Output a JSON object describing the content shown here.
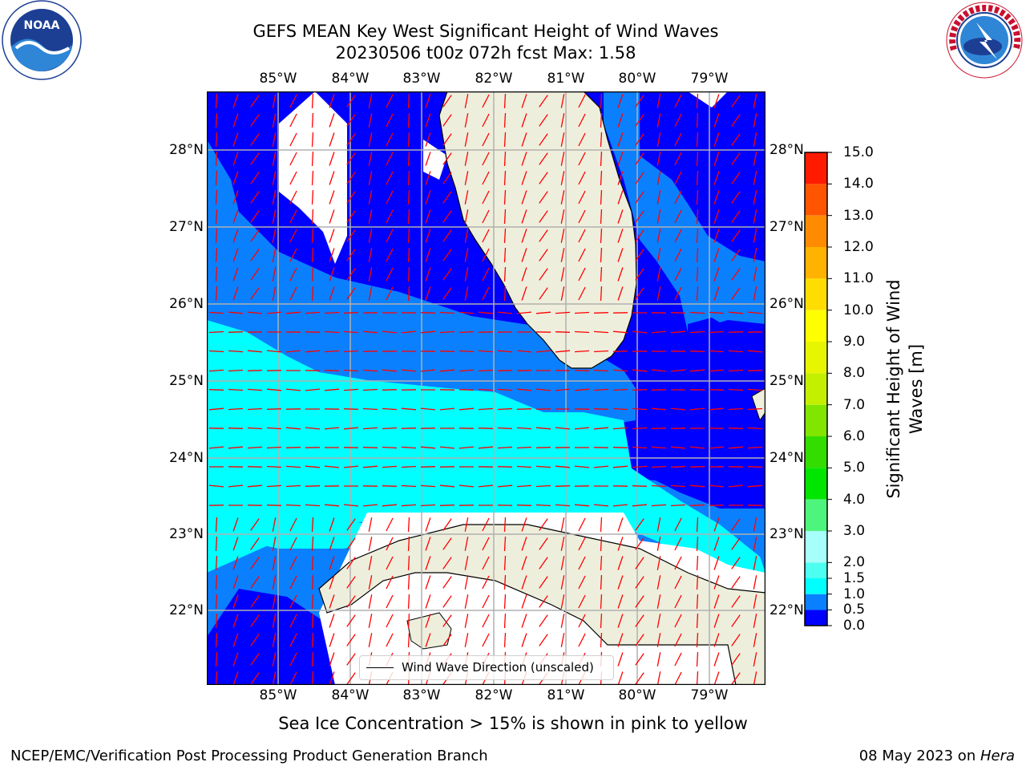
{
  "title": {
    "line1": "GEFS MEAN Key West Significant Height of Wind Waves",
    "line2": "20230506 t00z 072h fcst   Max: 1.58"
  },
  "map": {
    "lon_labels": [
      "85°W",
      "84°W",
      "83°W",
      "82°W",
      "81°W",
      "80°W",
      "79°W"
    ],
    "lat_labels": [
      "28°N",
      "27°N",
      "26°N",
      "25°N",
      "24°N",
      "23°N",
      "22°N"
    ],
    "colors": {
      "land": "#eeeedc",
      "sea_low": "#0000ff",
      "sea_mid": "#0b80ff",
      "sea_high": "#00ffff",
      "no_data": "#ffffff",
      "arrow": "#ff0000",
      "grid": "#b0b0b0"
    },
    "legend_label": "Wind Wave Direction (unscaled)"
  },
  "colorbar": {
    "label": "Significant Height of Wind Waves [m]",
    "ticks": [
      "0.0",
      "0.5",
      "1.0",
      "1.5",
      "2.0",
      "3.0",
      "4.0",
      "5.0",
      "6.0",
      "7.0",
      "8.0",
      "9.0",
      "10.0",
      "11.0",
      "12.0",
      "13.0",
      "14.0",
      "15.0"
    ],
    "colors": [
      "#0000ff",
      "#0b80ff",
      "#00ffff",
      "#4cfff0",
      "#a6fffb",
      "#4ef57c",
      "#00e600",
      "#33dd00",
      "#80e600",
      "#c4f000",
      "#e8f500",
      "#ffff00",
      "#ffdd00",
      "#ffb300",
      "#ff8c00",
      "#ff5500",
      "#ff1a00"
    ]
  },
  "note": "Sea Ice Concentration > 15% is shown in pink to yellow",
  "footer": {
    "left": "NCEP/EMC/Verification Post Processing Product Generation Branch",
    "right_date": "08 May 2023 on ",
    "right_machine": "Hera"
  },
  "logos": {
    "noaa_text": "NOAA",
    "nws_text": "NATIONAL WEATHER SERVICE"
  }
}
